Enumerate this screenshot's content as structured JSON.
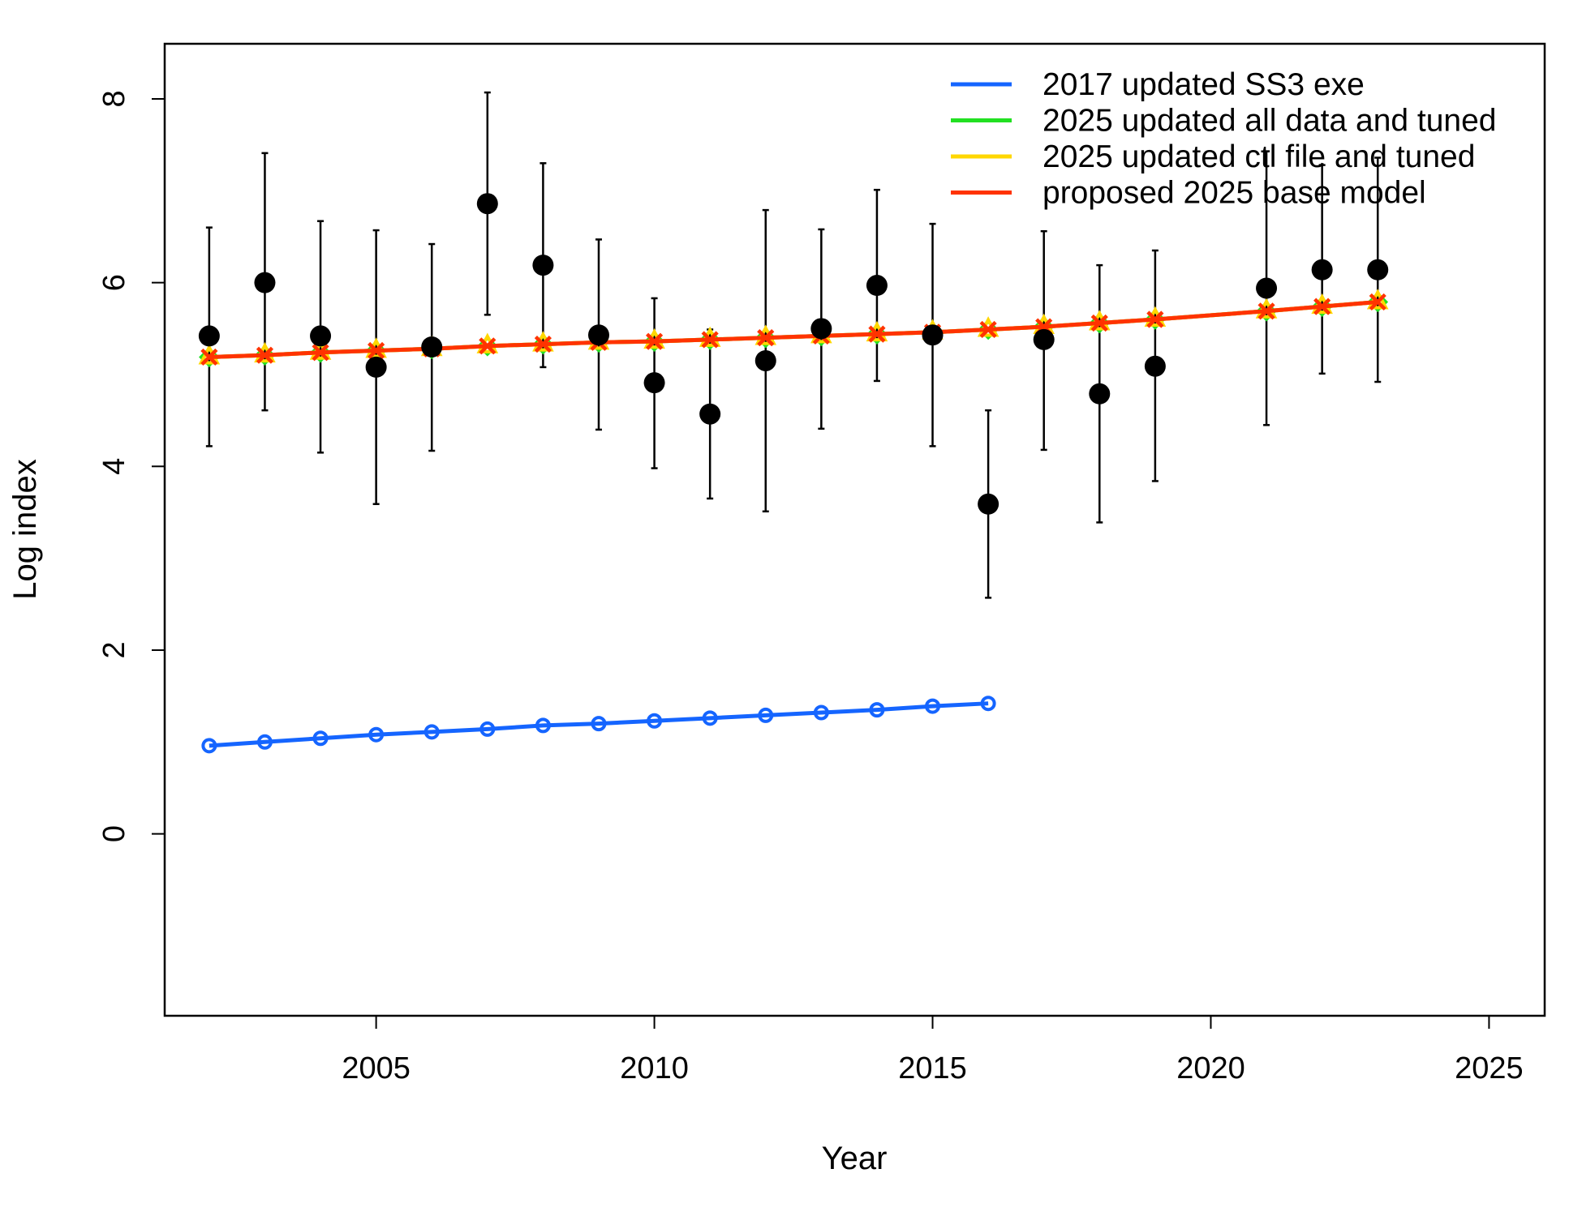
{
  "chart_data": {
    "type": "line",
    "title": "",
    "xlabel": "Year",
    "ylabel": "Log index",
    "xlim": [
      2001.2,
      2026.0
    ],
    "ylim": [
      -1.98,
      8.6
    ],
    "x_ticks": [
      2005,
      2010,
      2015,
      2020,
      2025
    ],
    "y_ticks": [
      0,
      2,
      4,
      6,
      8
    ],
    "grid": false,
    "legend_position": "top-right",
    "observed": {
      "x": [
        2002,
        2003,
        2004,
        2005,
        2006,
        2007,
        2008,
        2009,
        2010,
        2011,
        2012,
        2013,
        2014,
        2015,
        2016,
        2017,
        2018,
        2019,
        2021,
        2022,
        2023
      ],
      "y": [
        5.42,
        6.0,
        5.42,
        5.08,
        5.3,
        6.86,
        6.19,
        5.43,
        4.91,
        4.57,
        5.15,
        5.5,
        5.97,
        5.43,
        3.59,
        5.38,
        4.79,
        5.09,
        5.94,
        6.14,
        6.14
      ],
      "lower": [
        4.22,
        4.61,
        4.15,
        3.59,
        4.17,
        5.65,
        5.08,
        4.4,
        3.98,
        3.65,
        3.51,
        4.41,
        4.93,
        4.22,
        2.57,
        4.18,
        3.39,
        3.84,
        4.45,
        5.01,
        4.92
      ],
      "upper": [
        6.6,
        7.41,
        6.67,
        6.57,
        6.42,
        8.07,
        7.3,
        6.47,
        5.83,
        5.49,
        6.79,
        6.58,
        7.01,
        6.64,
        4.61,
        6.56,
        6.19,
        6.35,
        7.43,
        7.28,
        7.36
      ]
    },
    "series": [
      {
        "name": "2017 updated SS3 exe",
        "color": "#1565ff",
        "marker": "open-circle",
        "x": [
          2002,
          2003,
          2004,
          2005,
          2006,
          2007,
          2008,
          2009,
          2010,
          2011,
          2012,
          2013,
          2014,
          2015,
          2016
        ],
        "y": [
          0.96,
          1.0,
          1.04,
          1.08,
          1.11,
          1.14,
          1.18,
          1.2,
          1.23,
          1.26,
          1.29,
          1.32,
          1.35,
          1.39,
          1.42
        ]
      },
      {
        "name": "2025 updated all data and tuned",
        "color": "#22e022",
        "marker": "diamond",
        "x": [
          2002,
          2003,
          2004,
          2005,
          2006,
          2007,
          2008,
          2009,
          2010,
          2011,
          2012,
          2013,
          2014,
          2015,
          2016,
          2017,
          2018,
          2019,
          2021,
          2022,
          2023
        ],
        "y": [
          5.19,
          5.21,
          5.24,
          5.26,
          5.28,
          5.31,
          5.33,
          5.35,
          5.36,
          5.38,
          5.4,
          5.42,
          5.44,
          5.46,
          5.49,
          5.52,
          5.56,
          5.6,
          5.69,
          5.74,
          5.79
        ]
      },
      {
        "name": "2025 updated ctl file and tuned",
        "color": "#ffd700",
        "marker": "triangle",
        "x": [
          2002,
          2003,
          2004,
          2005,
          2006,
          2007,
          2008,
          2009,
          2010,
          2011,
          2012,
          2013,
          2014,
          2015,
          2016,
          2017,
          2018,
          2019,
          2021,
          2022,
          2023
        ],
        "y": [
          5.19,
          5.21,
          5.24,
          5.26,
          5.28,
          5.31,
          5.33,
          5.35,
          5.36,
          5.38,
          5.4,
          5.42,
          5.44,
          5.46,
          5.49,
          5.52,
          5.56,
          5.6,
          5.69,
          5.74,
          5.79
        ]
      },
      {
        "name": "proposed 2025 base model",
        "color": "#ff3300",
        "marker": "x",
        "x": [
          2002,
          2003,
          2004,
          2005,
          2006,
          2007,
          2008,
          2009,
          2010,
          2011,
          2012,
          2013,
          2014,
          2015,
          2016,
          2017,
          2018,
          2019,
          2021,
          2022,
          2023
        ],
        "y": [
          5.19,
          5.21,
          5.24,
          5.26,
          5.28,
          5.31,
          5.33,
          5.35,
          5.36,
          5.38,
          5.4,
          5.42,
          5.44,
          5.46,
          5.49,
          5.52,
          5.56,
          5.6,
          5.69,
          5.74,
          5.79
        ]
      }
    ]
  }
}
